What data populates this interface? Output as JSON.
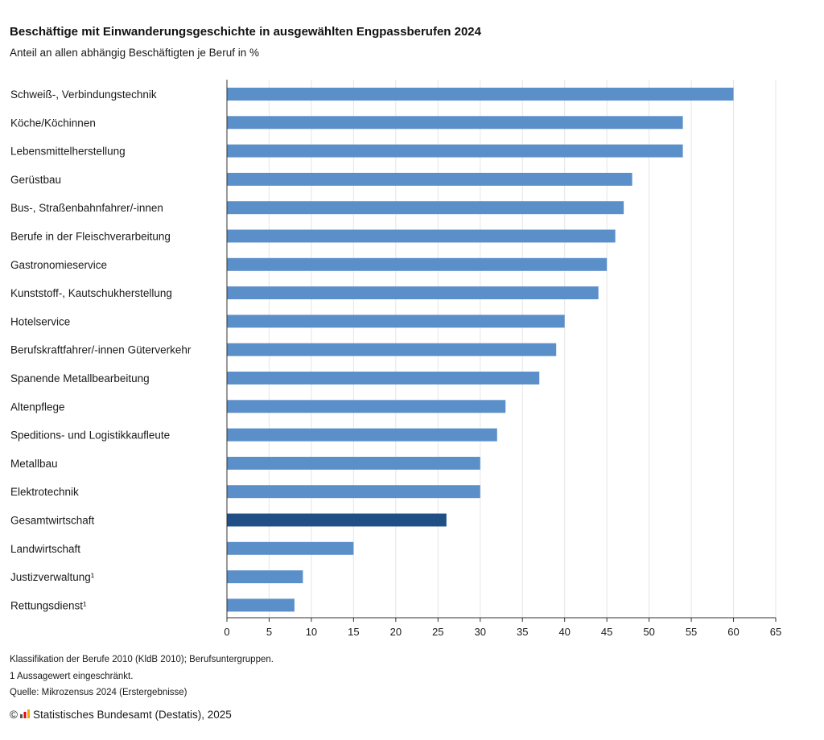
{
  "title": "Beschäftige mit Einwanderungsgeschichte in ausgewählten Engpassberufen 2024",
  "subtitle": "Anteil an allen abhängig Beschäftigten je Beruf in %",
  "chart_data": {
    "type": "bar",
    "orientation": "horizontal",
    "title": "Beschäftige mit Einwanderungsgeschichte in ausgewählten Engpassberufen 2024",
    "subtitle": "Anteil an allen abhängig Beschäftigten je Beruf in %",
    "categories": [
      "Schweiß-, Verbindungstechnik",
      "Köche/Köchinnen",
      "Lebensmittelherstellung",
      "Gerüstbau",
      "Bus-, Straßenbahnfahrer/-innen",
      "Berufe in der Fleischverarbeitung",
      "Gastronomieservice",
      "Kunststoff-, Kautschukherstellung",
      "Hotelservice",
      "Berufskraftfahrer/-innen Güterverkehr",
      "Spanende Metallbearbeitung",
      "Altenpflege",
      "Speditions- und Logistikkaufleute",
      "Metallbau",
      "Elektrotechnik",
      "Gesamtwirtschaft",
      "Landwirtschaft",
      "Justizverwaltung¹",
      "Rettungsdienst¹"
    ],
    "values": [
      60,
      54,
      54,
      48,
      47,
      46,
      45,
      44,
      40,
      39,
      37,
      33,
      32,
      30,
      30,
      26,
      15,
      9,
      8
    ],
    "highlight_index": 15,
    "bar_color": "#5b8fc9",
    "highlight_color": "#1f4f85",
    "xlim": [
      0,
      65
    ],
    "xticks": [
      0,
      5,
      10,
      15,
      20,
      25,
      30,
      35,
      40,
      45,
      50,
      55,
      60,
      65
    ],
    "xlabel": "",
    "ylabel": "",
    "grid": true,
    "legend": "none"
  },
  "footnotes": [
    "Klassifikation der Berufe 2010 (KldB 2010); Berufsuntergruppen.",
    "1 Aussagewert eingeschränkt.",
    "Quelle: Mikrozensus 2024 (Erstergebnisse)"
  ],
  "credit": {
    "copyright_symbol": "©",
    "logo_icon": "destatis-logo-icon",
    "text": "Statistisches Bundesamt (Destatis), 2025"
  }
}
